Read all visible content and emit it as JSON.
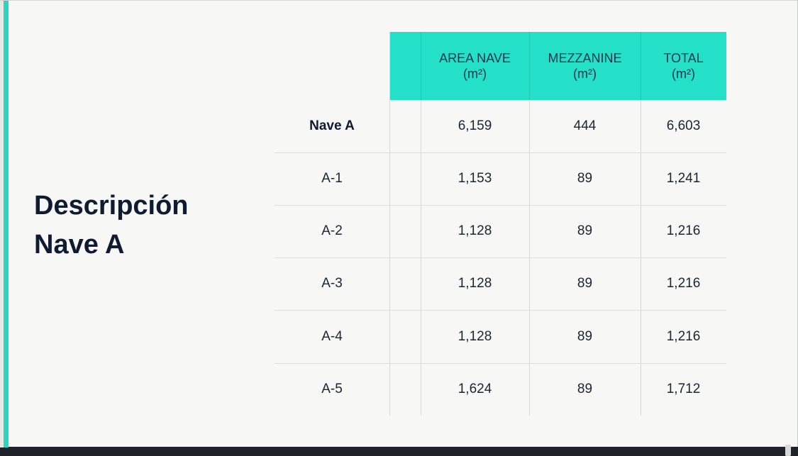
{
  "title": {
    "line1": "Descripción",
    "line2": "Nave A"
  },
  "table": {
    "headers": [
      {
        "line1": "AREA NAVE",
        "line2": "(m²)"
      },
      {
        "line1": "MEZZANINE",
        "line2": "(m²)"
      },
      {
        "line1": "TOTAL",
        "line2": "(m²)"
      }
    ],
    "rows": [
      {
        "label": "Nave A",
        "area": "6,159",
        "mezzanine": "444",
        "total": "6,603"
      },
      {
        "label": "A-1",
        "area": "1,153",
        "mezzanine": "89",
        "total": "1,241"
      },
      {
        "label": "A-2",
        "area": "1,128",
        "mezzanine": "89",
        "total": "1,216"
      },
      {
        "label": "A-3",
        "area": "1,128",
        "mezzanine": "89",
        "total": "1,216"
      },
      {
        "label": "A-4",
        "area": "1,128",
        "mezzanine": "89",
        "total": "1,216"
      },
      {
        "label": "A-5",
        "area": "1,624",
        "mezzanine": "89",
        "total": "1,712"
      }
    ]
  },
  "colors": {
    "accent": "#2dd4bf",
    "header_fill": "#24e0c8",
    "background": "#f7f8f5",
    "title_text": "#0f1a33"
  }
}
